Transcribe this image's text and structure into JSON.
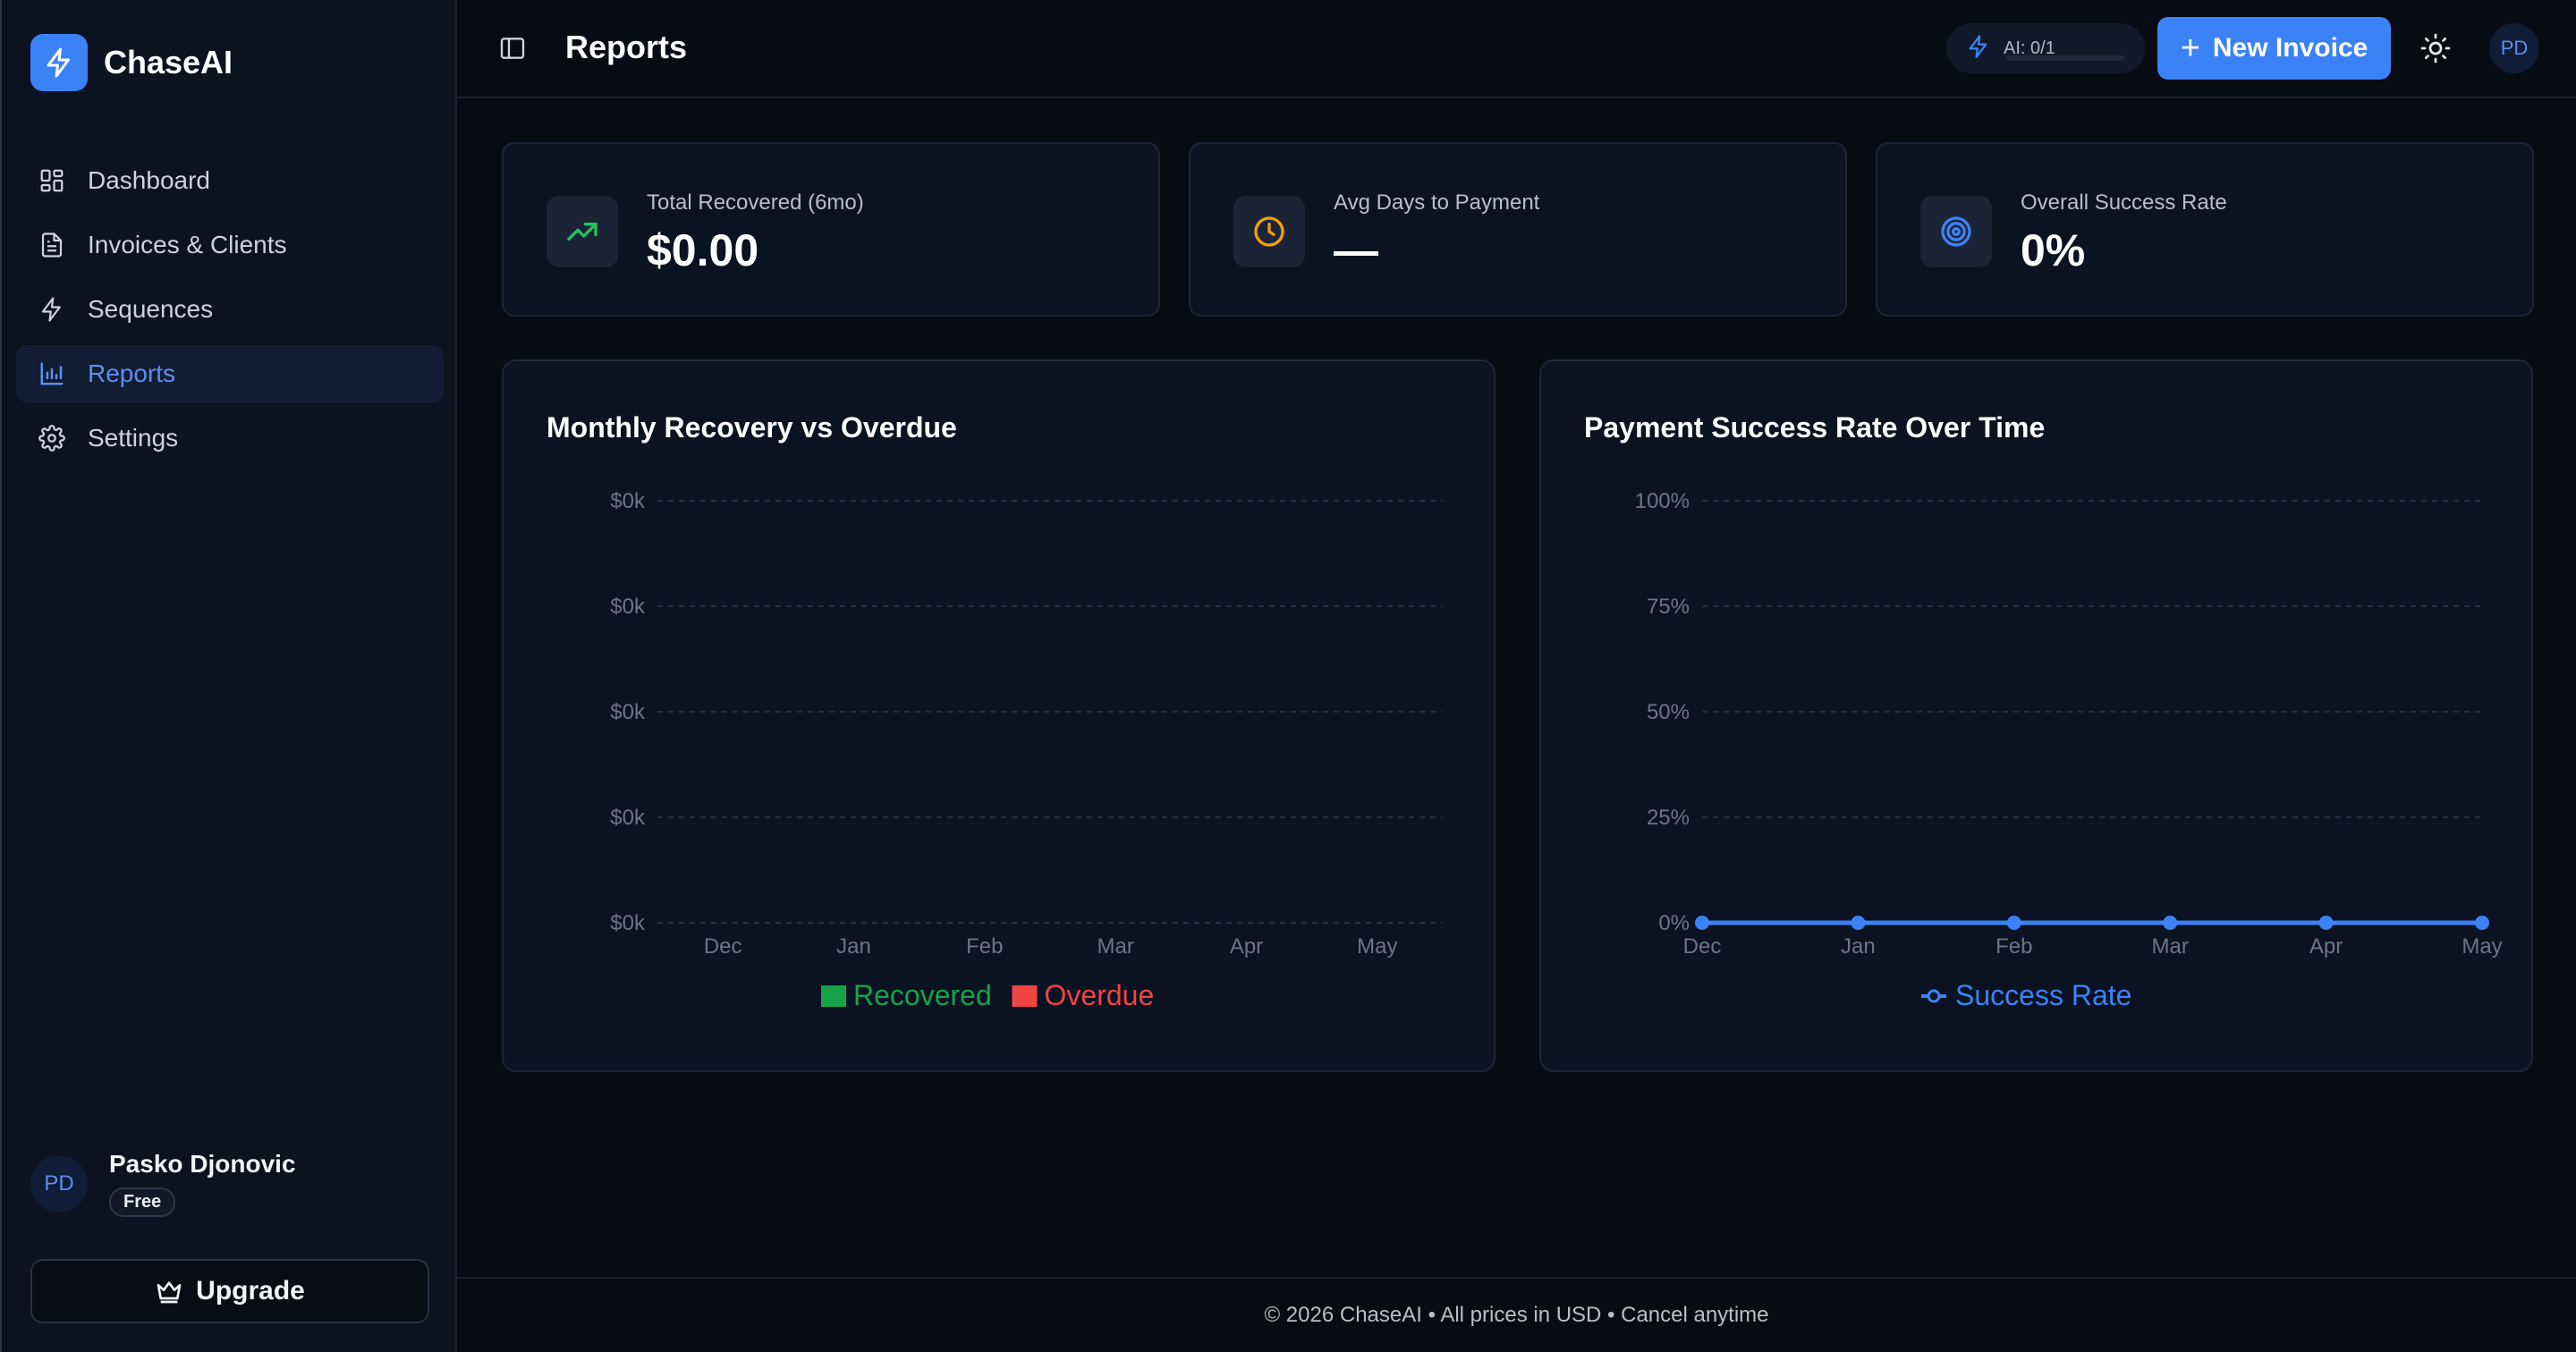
{
  "brand": {
    "name": "ChaseAI"
  },
  "nav": [
    {
      "label": "Dashboard",
      "icon": "dashboard-icon",
      "active": false
    },
    {
      "label": "Invoices & Clients",
      "icon": "document-icon",
      "active": false
    },
    {
      "label": "Sequences",
      "icon": "lightning-icon",
      "active": false
    },
    {
      "label": "Reports",
      "icon": "bar-chart-icon",
      "active": true
    },
    {
      "label": "Settings",
      "icon": "gear-icon",
      "active": false
    }
  ],
  "user": {
    "initials": "PD",
    "name": "Pasko Djonovic",
    "plan": "Free"
  },
  "upgrade_label": "Upgrade",
  "header": {
    "title": "Reports",
    "ai_usage": "AI: 0/1",
    "ai_usage_fraction": 0,
    "new_invoice_label": "New Invoice",
    "avatar_initials": "PD"
  },
  "stats": [
    {
      "label": "Total Recovered (6mo)",
      "value": "$0.00",
      "icon": "trending-up-icon",
      "color": "#22c55e"
    },
    {
      "label": "Avg Days to Payment",
      "value": "—",
      "icon": "clock-icon",
      "color": "#f59e0b"
    },
    {
      "label": "Overall Success Rate",
      "value": "0%",
      "icon": "target-icon",
      "color": "#3b82f6"
    }
  ],
  "chart_data": [
    {
      "type": "bar",
      "title": "Monthly Recovery vs Overdue",
      "categories": [
        "Dec",
        "Jan",
        "Feb",
        "Mar",
        "Apr",
        "May"
      ],
      "y_tick_labels": [
        "$0k",
        "$0k",
        "$0k",
        "$0k",
        "$0k"
      ],
      "series": [
        {
          "name": "Recovered",
          "values": [
            0,
            0,
            0,
            0,
            0,
            0
          ],
          "color": "#16a34a"
        },
        {
          "name": "Overdue",
          "values": [
            0,
            0,
            0,
            0,
            0,
            0
          ],
          "color": "#ef4444"
        }
      ],
      "grid": true,
      "legend": "bottom"
    },
    {
      "type": "line",
      "title": "Payment Success Rate Over Time",
      "categories": [
        "Dec",
        "Jan",
        "Feb",
        "Mar",
        "Apr",
        "May"
      ],
      "y_tick_labels": [
        "100%",
        "75%",
        "50%",
        "25%",
        "0%"
      ],
      "ylim": [
        0,
        100
      ],
      "series": [
        {
          "name": "Success Rate",
          "values": [
            0,
            0,
            0,
            0,
            0,
            0
          ],
          "color": "#3b82f6"
        }
      ],
      "grid": true,
      "legend": "bottom"
    }
  ],
  "footer": {
    "text": "© 2026 ChaseAI • All prices in USD • Cancel anytime"
  }
}
